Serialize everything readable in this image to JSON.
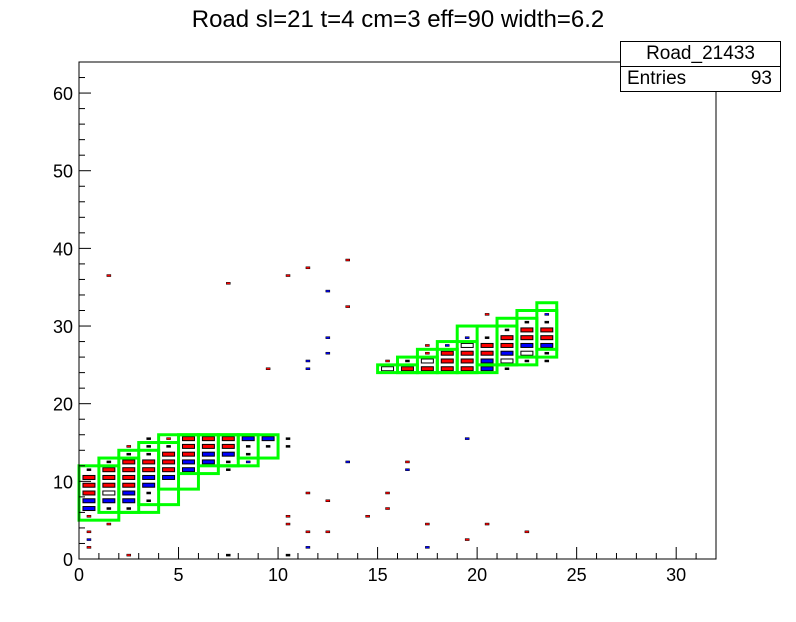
{
  "title": "Road sl=21 t=4 cm=3 eff=90 width=6.2",
  "stats": {
    "name": "Road_21433",
    "entries_label": "Entries",
    "entries_value": "93"
  },
  "colors": {
    "red": "#ff0000",
    "blue": "#0000ff",
    "black": "#000000",
    "green": "#00ff00"
  },
  "chart_data": {
    "type": "heatmap",
    "title": "Road sl=21 t=4 cm=3 eff=90 width=6.2",
    "xlim": [
      0,
      32
    ],
    "ylim": [
      0,
      64
    ],
    "x_ticks": [
      0,
      5,
      10,
      15,
      20,
      25,
      30
    ],
    "y_ticks": [
      0,
      10,
      20,
      30,
      40,
      50,
      60
    ],
    "cells": [
      {
        "x": 0.5,
        "y": 3.5,
        "c": "red"
      },
      {
        "x": 0.5,
        "y": 2.5,
        "c": "blue"
      },
      {
        "x": 0.5,
        "y": 1.5,
        "c": "red"
      },
      {
        "x": 0.5,
        "y": 5.5,
        "c": "red"
      },
      {
        "x": 0.5,
        "y": 6.5,
        "c": "blue",
        "s": "big"
      },
      {
        "x": 0.5,
        "y": 7.5,
        "c": "blue",
        "s": "big"
      },
      {
        "x": 0.5,
        "y": 8.5,
        "c": "red",
        "s": "big"
      },
      {
        "x": 0.5,
        "y": 9.5,
        "c": "red",
        "s": "big"
      },
      {
        "x": 0.5,
        "y": 10.5,
        "c": "red",
        "s": "big"
      },
      {
        "x": 0.5,
        "y": 11.5,
        "c": "black"
      },
      {
        "x": 1.5,
        "y": 4.5,
        "c": "red"
      },
      {
        "x": 1.5,
        "y": 6.5,
        "c": "black"
      },
      {
        "x": 1.5,
        "y": 7.5,
        "c": "blue",
        "s": "big"
      },
      {
        "x": 1.5,
        "y": 8.5,
        "c": "black",
        "s": "big"
      },
      {
        "x": 1.5,
        "y": 9.5,
        "c": "red",
        "s": "big"
      },
      {
        "x": 1.5,
        "y": 10.5,
        "c": "red",
        "s": "big"
      },
      {
        "x": 1.5,
        "y": 11.5,
        "c": "red",
        "s": "big"
      },
      {
        "x": 1.5,
        "y": 12.5,
        "c": "black"
      },
      {
        "x": 1.5,
        "y": 36.5,
        "c": "red"
      },
      {
        "x": 2.5,
        "y": 0.5,
        "c": "red"
      },
      {
        "x": 2.5,
        "y": 6.5,
        "c": "black"
      },
      {
        "x": 2.5,
        "y": 7.5,
        "c": "blue",
        "s": "big"
      },
      {
        "x": 2.5,
        "y": 8.5,
        "c": "blue",
        "s": "big"
      },
      {
        "x": 2.5,
        "y": 9.5,
        "c": "red",
        "s": "big"
      },
      {
        "x": 2.5,
        "y": 10.5,
        "c": "red",
        "s": "big"
      },
      {
        "x": 2.5,
        "y": 11.5,
        "c": "red",
        "s": "big"
      },
      {
        "x": 2.5,
        "y": 12.5,
        "c": "red",
        "s": "big"
      },
      {
        "x": 2.5,
        "y": 13.5,
        "c": "black"
      },
      {
        "x": 2.5,
        "y": 14.5,
        "c": "red"
      },
      {
        "x": 3.5,
        "y": 7.5,
        "c": "black"
      },
      {
        "x": 3.5,
        "y": 8.5,
        "c": "black"
      },
      {
        "x": 3.5,
        "y": 9.5,
        "c": "blue",
        "s": "big"
      },
      {
        "x": 3.5,
        "y": 10.5,
        "c": "blue",
        "s": "big"
      },
      {
        "x": 3.5,
        "y": 11.5,
        "c": "red",
        "s": "big"
      },
      {
        "x": 3.5,
        "y": 12.5,
        "c": "red",
        "s": "big"
      },
      {
        "x": 3.5,
        "y": 13.5,
        "c": "black"
      },
      {
        "x": 3.5,
        "y": 14.5,
        "c": "black"
      },
      {
        "x": 3.5,
        "y": 15.5,
        "c": "black"
      },
      {
        "x": 4.5,
        "y": 10.5,
        "c": "blue",
        "s": "big"
      },
      {
        "x": 4.5,
        "y": 11.5,
        "c": "red",
        "s": "big"
      },
      {
        "x": 4.5,
        "y": 12.5,
        "c": "red",
        "s": "big"
      },
      {
        "x": 4.5,
        "y": 13.5,
        "c": "red",
        "s": "big"
      },
      {
        "x": 4.5,
        "y": 14.5,
        "c": "black"
      },
      {
        "x": 4.5,
        "y": 15.5,
        "c": "red"
      },
      {
        "x": 5.5,
        "y": 11.5,
        "c": "blue",
        "s": "big"
      },
      {
        "x": 5.5,
        "y": 12.5,
        "c": "blue",
        "s": "big"
      },
      {
        "x": 5.5,
        "y": 13.5,
        "c": "red",
        "s": "big"
      },
      {
        "x": 5.5,
        "y": 14.5,
        "c": "red",
        "s": "big"
      },
      {
        "x": 5.5,
        "y": 15.5,
        "c": "red",
        "s": "big"
      },
      {
        "x": 6.5,
        "y": 12.5,
        "c": "blue",
        "s": "big"
      },
      {
        "x": 6.5,
        "y": 13.5,
        "c": "blue",
        "s": "big"
      },
      {
        "x": 6.5,
        "y": 14.5,
        "c": "red",
        "s": "big"
      },
      {
        "x": 6.5,
        "y": 15.5,
        "c": "red",
        "s": "big"
      },
      {
        "x": 7.5,
        "y": 0.5,
        "c": "black"
      },
      {
        "x": 7.5,
        "y": 11.5,
        "c": "black"
      },
      {
        "x": 7.5,
        "y": 12.5,
        "c": "black"
      },
      {
        "x": 7.5,
        "y": 13.5,
        "c": "blue",
        "s": "big"
      },
      {
        "x": 7.5,
        "y": 14.5,
        "c": "red",
        "s": "big"
      },
      {
        "x": 7.5,
        "y": 15.5,
        "c": "red",
        "s": "big"
      },
      {
        "x": 7.5,
        "y": 35.5,
        "c": "red"
      },
      {
        "x": 8.5,
        "y": 12.5,
        "c": "blue"
      },
      {
        "x": 8.5,
        "y": 13.5,
        "c": "black"
      },
      {
        "x": 8.5,
        "y": 14.5,
        "c": "black"
      },
      {
        "x": 8.5,
        "y": 15.5,
        "c": "blue",
        "s": "big"
      },
      {
        "x": 9.5,
        "y": 14.5,
        "c": "black"
      },
      {
        "x": 9.5,
        "y": 15.5,
        "c": "blue",
        "s": "big"
      },
      {
        "x": 9.5,
        "y": 24.5,
        "c": "red"
      },
      {
        "x": 10.5,
        "y": 0.5,
        "c": "black"
      },
      {
        "x": 10.5,
        "y": 4.5,
        "c": "red"
      },
      {
        "x": 10.5,
        "y": 5.5,
        "c": "red"
      },
      {
        "x": 10.5,
        "y": 14.5,
        "c": "black"
      },
      {
        "x": 10.5,
        "y": 15.5,
        "c": "black"
      },
      {
        "x": 10.5,
        "y": 36.5,
        "c": "red"
      },
      {
        "x": 11.5,
        "y": 1.5,
        "c": "blue"
      },
      {
        "x": 11.5,
        "y": 3.5,
        "c": "red"
      },
      {
        "x": 11.5,
        "y": 8.5,
        "c": "red"
      },
      {
        "x": 11.5,
        "y": 24.5,
        "c": "blue"
      },
      {
        "x": 11.5,
        "y": 25.5,
        "c": "blue"
      },
      {
        "x": 11.5,
        "y": 37.5,
        "c": "red"
      },
      {
        "x": 12.5,
        "y": 3.5,
        "c": "red"
      },
      {
        "x": 12.5,
        "y": 7.5,
        "c": "red"
      },
      {
        "x": 12.5,
        "y": 26.5,
        "c": "blue"
      },
      {
        "x": 12.5,
        "y": 28.5,
        "c": "blue"
      },
      {
        "x": 12.5,
        "y": 34.5,
        "c": "blue"
      },
      {
        "x": 13.5,
        "y": 12.5,
        "c": "blue"
      },
      {
        "x": 13.5,
        "y": 32.5,
        "c": "red"
      },
      {
        "x": 13.5,
        "y": 38.5,
        "c": "red"
      },
      {
        "x": 14.5,
        "y": 5.5,
        "c": "red"
      },
      {
        "x": 15.5,
        "y": 6.5,
        "c": "red"
      },
      {
        "x": 15.5,
        "y": 8.5,
        "c": "red"
      },
      {
        "x": 15.5,
        "y": 24.5,
        "c": "black",
        "s": "big"
      },
      {
        "x": 15.5,
        "y": 25.5,
        "c": "red"
      },
      {
        "x": 16.5,
        "y": 11.5,
        "c": "blue"
      },
      {
        "x": 16.5,
        "y": 12.5,
        "c": "red"
      },
      {
        "x": 16.5,
        "y": 24.5,
        "c": "red",
        "s": "big"
      },
      {
        "x": 16.5,
        "y": 25.5,
        "c": "black"
      },
      {
        "x": 17.5,
        "y": 1.5,
        "c": "blue"
      },
      {
        "x": 17.5,
        "y": 4.5,
        "c": "red"
      },
      {
        "x": 17.5,
        "y": 24.5,
        "c": "red",
        "s": "big"
      },
      {
        "x": 17.5,
        "y": 25.5,
        "c": "black",
        "s": "big"
      },
      {
        "x": 17.5,
        "y": 26.5,
        "c": "red"
      },
      {
        "x": 17.5,
        "y": 27.5,
        "c": "red"
      },
      {
        "x": 18.5,
        "y": 24.5,
        "c": "red",
        "s": "big"
      },
      {
        "x": 18.5,
        "y": 25.5,
        "c": "red",
        "s": "big"
      },
      {
        "x": 18.5,
        "y": 26.5,
        "c": "red",
        "s": "big"
      },
      {
        "x": 18.5,
        "y": 27.5,
        "c": "blue"
      },
      {
        "x": 19.5,
        "y": 2.5,
        "c": "red"
      },
      {
        "x": 19.5,
        "y": 15.5,
        "c": "blue"
      },
      {
        "x": 19.5,
        "y": 24.5,
        "c": "red",
        "s": "big"
      },
      {
        "x": 19.5,
        "y": 25.5,
        "c": "red",
        "s": "big"
      },
      {
        "x": 19.5,
        "y": 26.5,
        "c": "red",
        "s": "big"
      },
      {
        "x": 19.5,
        "y": 27.5,
        "c": "black",
        "s": "big"
      },
      {
        "x": 19.5,
        "y": 28.5,
        "c": "blue"
      },
      {
        "x": 20.5,
        "y": 4.5,
        "c": "red"
      },
      {
        "x": 20.5,
        "y": 24.5,
        "c": "blue",
        "s": "big"
      },
      {
        "x": 20.5,
        "y": 25.5,
        "c": "blue",
        "s": "big"
      },
      {
        "x": 20.5,
        "y": 26.5,
        "c": "red",
        "s": "big"
      },
      {
        "x": 20.5,
        "y": 27.5,
        "c": "red",
        "s": "big"
      },
      {
        "x": 20.5,
        "y": 28.5,
        "c": "black"
      },
      {
        "x": 20.5,
        "y": 31.5,
        "c": "red"
      },
      {
        "x": 21.5,
        "y": 24.5,
        "c": "black"
      },
      {
        "x": 21.5,
        "y": 25.5,
        "c": "black",
        "s": "big"
      },
      {
        "x": 21.5,
        "y": 26.5,
        "c": "blue",
        "s": "big"
      },
      {
        "x": 21.5,
        "y": 27.5,
        "c": "red",
        "s": "big"
      },
      {
        "x": 21.5,
        "y": 28.5,
        "c": "red",
        "s": "big"
      },
      {
        "x": 21.5,
        "y": 29.5,
        "c": "black"
      },
      {
        "x": 22.5,
        "y": 3.5,
        "c": "red"
      },
      {
        "x": 22.5,
        "y": 25.5,
        "c": "black"
      },
      {
        "x": 22.5,
        "y": 26.5,
        "c": "black",
        "s": "big"
      },
      {
        "x": 22.5,
        "y": 27.5,
        "c": "blue",
        "s": "big"
      },
      {
        "x": 22.5,
        "y": 28.5,
        "c": "red",
        "s": "big"
      },
      {
        "x": 22.5,
        "y": 29.5,
        "c": "red",
        "s": "big"
      },
      {
        "x": 22.5,
        "y": 30.5,
        "c": "black"
      },
      {
        "x": 23.5,
        "y": 25.5,
        "c": "black"
      },
      {
        "x": 23.5,
        "y": 26.5,
        "c": "black"
      },
      {
        "x": 23.5,
        "y": 27.5,
        "c": "blue",
        "s": "big"
      },
      {
        "x": 23.5,
        "y": 28.5,
        "c": "red",
        "s": "big"
      },
      {
        "x": 23.5,
        "y": 29.5,
        "c": "red",
        "s": "big"
      },
      {
        "x": 23.5,
        "y": 30.5,
        "c": "black"
      },
      {
        "x": 23.5,
        "y": 31.5,
        "c": "blue"
      }
    ],
    "road_boxes": [
      {
        "x0": 0,
        "x1": 2,
        "y0": 5,
        "y1": 12
      },
      {
        "x0": 1,
        "x1": 3,
        "y0": 6,
        "y1": 13
      },
      {
        "x0": 2,
        "x1": 4,
        "y0": 6,
        "y1": 14
      },
      {
        "x0": 3,
        "x1": 5,
        "y0": 7,
        "y1": 15
      },
      {
        "x0": 4,
        "x1": 6,
        "y0": 9,
        "y1": 16
      },
      {
        "x0": 5,
        "x1": 7,
        "y0": 11,
        "y1": 16
      },
      {
        "x0": 6,
        "x1": 8,
        "y0": 12,
        "y1": 16
      },
      {
        "x0": 7,
        "x1": 9,
        "y0": 12,
        "y1": 16
      },
      {
        "x0": 8,
        "x1": 10,
        "y0": 13,
        "y1": 16
      },
      {
        "x0": 15,
        "x1": 17,
        "y0": 24,
        "y1": 25
      },
      {
        "x0": 16,
        "x1": 18,
        "y0": 24,
        "y1": 26
      },
      {
        "x0": 17,
        "x1": 19,
        "y0": 24,
        "y1": 27
      },
      {
        "x0": 18,
        "x1": 20,
        "y0": 24,
        "y1": 28
      },
      {
        "x0": 19,
        "x1": 21,
        "y0": 24,
        "y1": 30
      },
      {
        "x0": 20,
        "x1": 22,
        "y0": 25,
        "y1": 30
      },
      {
        "x0": 21,
        "x1": 23,
        "y0": 25,
        "y1": 31
      },
      {
        "x0": 22,
        "x1": 24,
        "y0": 26,
        "y1": 32
      },
      {
        "x0": 23,
        "x1": 24,
        "y0": 27,
        "y1": 33
      }
    ]
  }
}
